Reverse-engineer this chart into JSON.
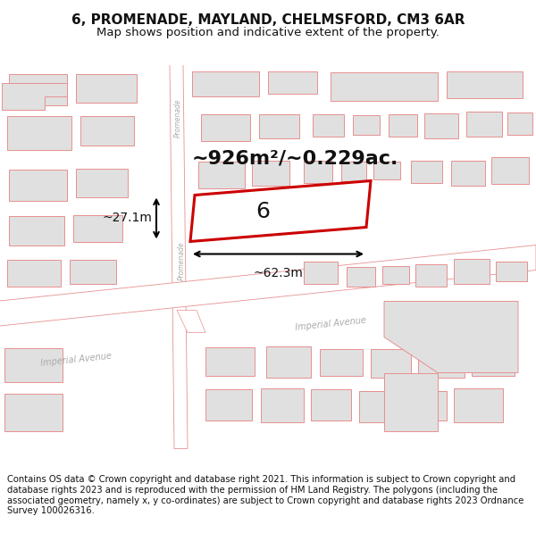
{
  "title": "6, PROMENADE, MAYLAND, CHELMSFORD, CM3 6AR",
  "subtitle": "Map shows position and indicative extent of the property.",
  "footer": "Contains OS data © Crown copyright and database right 2021. This information is subject to Crown copyright and database rights 2023 and is reproduced with the permission of HM Land Registry. The polygons (including the associated geometry, namely x, y co-ordinates) are subject to Crown copyright and database rights 2023 Ordnance Survey 100026316.",
  "bg_color": "#f7f3f3",
  "building_fill": "#e0e0e0",
  "building_edge": "#e89090",
  "road_fill": "#ffffff",
  "road_edge": "#e89090",
  "highlight_edge": "#cc0000",
  "highlight_fill": "#ffffff",
  "area_text": "~926m²/~0.229ac.",
  "width_text": "~62.3m",
  "height_text": "~27.1m",
  "label_number": "6",
  "title_fontsize": 11,
  "subtitle_fontsize": 9.5,
  "footer_fontsize": 7.2,
  "area_fontsize": 16,
  "label_fontsize": 18,
  "dim_fontsize": 10
}
